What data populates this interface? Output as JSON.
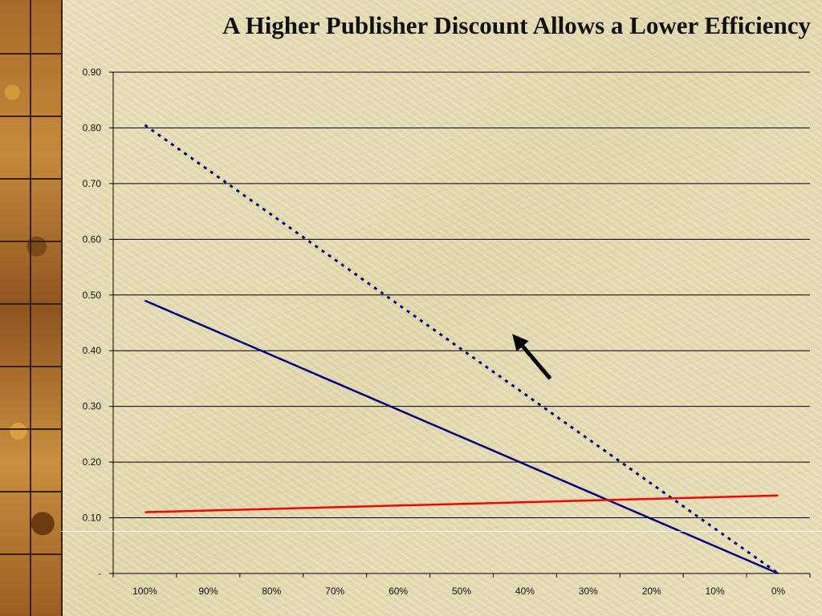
{
  "chart_data": {
    "type": "line",
    "title": "A Higher Publisher Discount Allows a Lower Efficiency",
    "xlabel": "",
    "ylabel": "",
    "categories": [
      "100%",
      "90%",
      "80%",
      "70%",
      "60%",
      "50%",
      "40%",
      "30%",
      "20%",
      "10%",
      "0%"
    ],
    "y_ticks": [
      "-",
      "0.10",
      "0.20",
      "0.30",
      "0.40",
      "0.50",
      "0.60",
      "0.70",
      "0.80",
      "0.90"
    ],
    "ylim": [
      0,
      0.9
    ],
    "grid": true,
    "legend": "none",
    "series": [
      {
        "values": [
          0.49,
          0.441,
          0.392,
          0.343,
          0.294,
          0.245,
          0.196,
          0.147,
          0.098,
          0.049,
          0.0
        ],
        "color": "#000080",
        "style": "solid"
      },
      {
        "values": [
          0.805,
          0.7245,
          0.644,
          0.5635,
          0.483,
          0.4025,
          0.322,
          0.2415,
          0.161,
          0.0805,
          0.0
        ],
        "color": "#000080",
        "style": "dotted"
      },
      {
        "values": [
          0.11,
          0.113,
          0.116,
          0.119,
          0.122,
          0.125,
          0.128,
          0.131,
          0.134,
          0.137,
          0.14
        ],
        "color": "#ff0000",
        "style": "solid"
      }
    ],
    "annotations": [
      {
        "type": "arrow",
        "from": [
          0.64,
          0.35
        ],
        "to": [
          0.58,
          0.43
        ],
        "color": "#000000"
      }
    ]
  }
}
